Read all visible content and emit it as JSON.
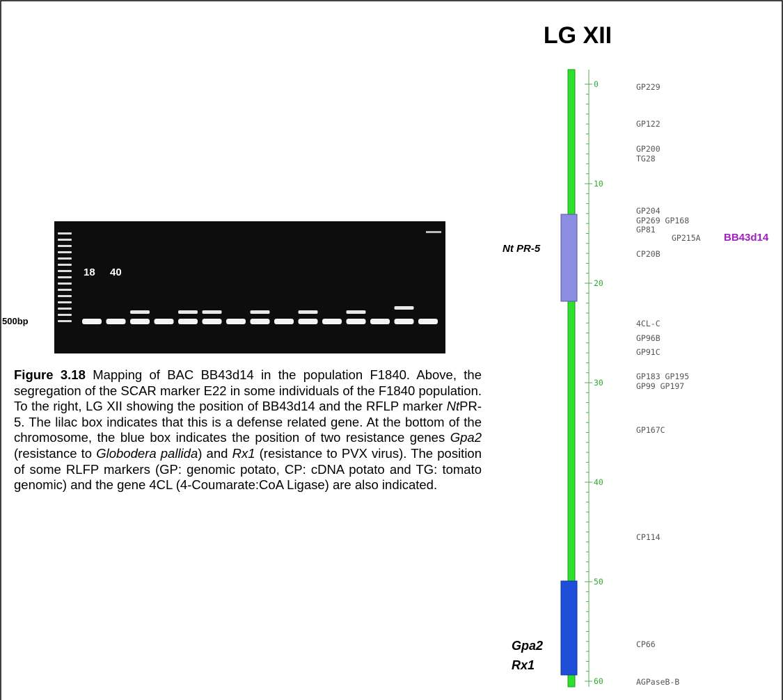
{
  "gel": {
    "lane_labels": [
      "18",
      "40"
    ],
    "size_label": "500bp"
  },
  "caption": {
    "label": "Figure 3.18",
    "parts": [
      "Mapping of BAC BB43d14 in the population F1840.  Above, the segregation of the SCAR marker E22 in some individuals of the F1840 population.  To the right, LG XII showing the position of BB43d14 and the RFLP marker ",
      "Nt",
      "PR-5.  The lilac box indicates that this is a defense related gene.  At the bottom of the chromosome, the blue box indicates the position of two resistance genes ",
      "Gpa2",
      " (resistance to ",
      "Globodera pallida",
      ") and ",
      "Rx1",
      " (resistance to PVX virus).  The position of some RLFP markers (GP: genomic potato, CP: cDNA potato and TG: tomato genomic) and the gene 4CL (4-Coumarate:CoA Ligase) are also indicated."
    ]
  },
  "map": {
    "title": "LG XII",
    "scale": [
      "0",
      "10",
      "20",
      "30",
      "40",
      "50",
      "60"
    ],
    "markers": [
      "GP229",
      "GP122",
      "GP200",
      "TG28",
      "GP204",
      "GP269 GP168",
      "GP81",
      "GP215A",
      "CP20B",
      "4CL-C",
      "GP96B",
      "GP91C",
      "GP183 GP195",
      "GP99 GP197",
      "GP167C",
      "CP114",
      "CP66",
      "AGPaseB-B"
    ],
    "bac": "BB43d14",
    "defense_gene": "Nt PR-5",
    "resistance_genes": [
      "Gpa2",
      "Rx1"
    ]
  }
}
